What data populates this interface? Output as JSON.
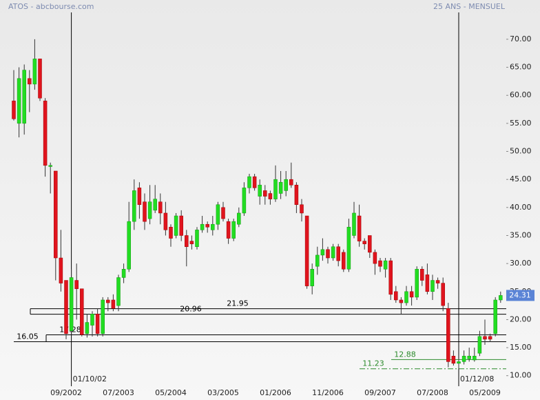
{
  "chart_data": {
    "type": "candlestick",
    "title": "ATOS - abcbourse.com",
    "subtitle": "25 ANS - MENSUEL",
    "x": [
      "11/2001",
      "12/2001",
      "01/2002",
      "02/2002",
      "03/2002",
      "04/2002",
      "05/2002",
      "06/2002",
      "07/2002",
      "08/2002",
      "09/2002",
      "10/2002",
      "11/2002",
      "12/2002",
      "01/2003",
      "02/2003",
      "03/2003",
      "04/2003",
      "05/2003",
      "06/2003",
      "07/2003",
      "08/2003",
      "09/2003",
      "10/2003",
      "11/2003",
      "12/2003",
      "01/2004",
      "02/2004",
      "03/2004",
      "04/2004",
      "05/2004",
      "06/2004",
      "07/2004",
      "08/2004",
      "09/2004",
      "10/2004",
      "11/2004",
      "12/2004",
      "01/2005",
      "02/2005",
      "03/2005",
      "04/2005",
      "05/2005",
      "06/2005",
      "07/2005",
      "08/2005",
      "09/2005",
      "10/2005",
      "11/2005",
      "12/2005",
      "01/2006",
      "02/2006",
      "03/2006",
      "04/2006",
      "05/2006",
      "06/2006",
      "07/2006",
      "08/2006",
      "09/2006",
      "10/2006",
      "11/2006",
      "12/2006",
      "01/2007",
      "02/2007",
      "03/2007",
      "04/2007",
      "05/2007",
      "06/2007",
      "07/2007",
      "08/2007",
      "09/2007",
      "10/2007",
      "11/2007",
      "12/2007",
      "01/2008",
      "02/2008",
      "03/2008",
      "04/2008",
      "05/2008",
      "06/2008",
      "07/2008",
      "08/2008",
      "09/2008",
      "10/2008",
      "11/2008",
      "12/2008",
      "01/2009",
      "02/2009",
      "03/2009",
      "04/2009",
      "05/2009",
      "06/2009",
      "07/2009",
      "08/2009"
    ],
    "xticks": [
      "09/2002",
      "07/2003",
      "05/2004",
      "03/2005",
      "01/2006",
      "11/2006",
      "09/2007",
      "07/2008",
      "05/2009"
    ],
    "open": [
      59,
      55,
      55,
      63,
      62,
      66.5,
      59,
      47.3,
      46.5,
      31,
      27,
      18,
      27,
      25.5,
      17.5,
      19,
      21,
      17.5,
      23.5,
      23.5,
      22.5,
      27.5,
      29,
      37.5,
      43.5,
      41,
      38,
      39.5,
      41,
      39,
      36.5,
      35,
      38.5,
      35,
      34,
      33,
      36,
      37,
      36,
      37,
      40,
      37.5,
      34.5,
      37,
      39,
      43.5,
      45.5,
      42,
      43,
      42.5,
      41.5,
      42.5,
      43,
      45,
      44,
      40.5,
      38.5,
      26,
      29.5,
      31.5,
      32.5,
      31,
      33,
      32,
      29,
      35,
      38.5,
      34,
      35,
      32,
      30.5,
      29,
      30.5,
      25,
      23.5,
      23,
      25,
      24,
      29,
      28,
      25,
      27,
      26.5,
      22,
      13.5,
      12.2,
      12.5,
      13,
      12.8,
      14,
      17,
      17,
      17.5,
      23.5
    ],
    "high": [
      64.5,
      65,
      65.5,
      64.5,
      70,
      66.5,
      59.5,
      48,
      46.5,
      36,
      27,
      29,
      30,
      25.5,
      21,
      21.5,
      22,
      24,
      24,
      24.5,
      28,
      30,
      41,
      45,
      44.5,
      42.5,
      44,
      44,
      42.5,
      41,
      37,
      39,
      39.5,
      36,
      35,
      36.5,
      38.5,
      37.5,
      38.5,
      41,
      41,
      38,
      38,
      40,
      44.5,
      46,
      46,
      45,
      44,
      43,
      47.5,
      46.5,
      46.5,
      48,
      44.5,
      41.5,
      38.5,
      30,
      33,
      34.5,
      33,
      33.5,
      33.5,
      32.5,
      38,
      41,
      40.5,
      34.5,
      35,
      32.5,
      31,
      31,
      31,
      26,
      24,
      26,
      26,
      29.5,
      29.5,
      30,
      28,
      27.5,
      27.5,
      23,
      14.5,
      13,
      14.5,
      15,
      15,
      18,
      20,
      17.5,
      24,
      25
    ],
    "low": [
      55.5,
      52.5,
      53,
      57,
      61,
      59,
      45.5,
      42.5,
      27,
      25,
      16.5,
      17.28,
      20,
      17,
      16.8,
      17,
      17,
      17,
      21.5,
      21.5,
      21.5,
      26.5,
      28.5,
      36,
      38,
      36,
      37,
      39,
      37,
      35,
      33,
      34.5,
      34,
      29.5,
      32.5,
      32.5,
      35.5,
      35.5,
      35,
      36,
      37.5,
      33.5,
      34,
      36.5,
      38.5,
      42.5,
      43,
      40.5,
      40.5,
      40.5,
      41,
      41.5,
      42,
      43.5,
      39,
      37.5,
      25.5,
      24.5,
      28,
      30.5,
      30,
      30.5,
      29.5,
      28.5,
      28.5,
      34.5,
      33,
      32.5,
      31,
      28,
      28.5,
      27.5,
      23.5,
      23,
      21,
      22.5,
      22.5,
      23.5,
      26,
      24.5,
      23.5,
      25.5,
      21.5,
      11.5,
      11.8,
      11.23,
      12,
      12.5,
      12.5,
      13.5,
      15.5,
      16,
      17,
      23
    ],
    "close": [
      55.8,
      63,
      64.5,
      62,
      66.5,
      59.5,
      47.5,
      47.5,
      31,
      26.5,
      17.5,
      27.5,
      25.5,
      17.3,
      19.5,
      21,
      17.5,
      23.5,
      23,
      22,
      27.5,
      29,
      37.5,
      43,
      40.5,
      37.5,
      41,
      41.5,
      39,
      36,
      34.5,
      38.5,
      35,
      33,
      33.5,
      36,
      37,
      36.5,
      37,
      40.5,
      38,
      34.5,
      37.5,
      39,
      43.5,
      45.5,
      43.5,
      44,
      42,
      41.5,
      45,
      44.5,
      45,
      44,
      40.5,
      39,
      26,
      29,
      31.5,
      32.5,
      31,
      33,
      30.5,
      29,
      36.5,
      39,
      34,
      33.5,
      32,
      30,
      29.5,
      30.5,
      24.5,
      23.5,
      23,
      25,
      24,
      29,
      27,
      25,
      27,
      26.5,
      22.5,
      12.5,
      12.2,
      12.5,
      13.5,
      13.5,
      13.5,
      17,
      16.5,
      16.5,
      23.5,
      24.31
    ],
    "up_color": "#22dd22",
    "down_color": "#e0141e",
    "last": 24.31,
    "ylim": [
      8,
      77
    ],
    "yticks": [
      {
        "value": 10,
        "label": "10.00"
      },
      {
        "value": 15,
        "label": "15.00"
      },
      {
        "value": 20,
        "label": "20.00"
      },
      {
        "value": 25,
        "label": "25.00"
      },
      {
        "value": 30,
        "label": "30.00"
      },
      {
        "value": 35,
        "label": "35.00"
      },
      {
        "value": 40,
        "label": "40.00"
      },
      {
        "value": 45,
        "label": "45.00"
      },
      {
        "value": 50,
        "label": "50.00"
      },
      {
        "value": 55,
        "label": "55.00"
      },
      {
        "value": 60,
        "label": "60.00"
      },
      {
        "value": 65,
        "label": "65.00"
      },
      {
        "value": 70,
        "label": "70.00"
      }
    ],
    "levels": [
      {
        "value": 21.95,
        "color": "#000000"
      },
      {
        "value": 20.96,
        "color": "#000000"
      },
      {
        "value": 17.28,
        "color": "#000000"
      },
      {
        "value": 16.05,
        "color": "#000000"
      },
      {
        "value": 12.88,
        "color": "#2a8a2a"
      },
      {
        "value": 11.23,
        "color": "#2a8a2a"
      }
    ],
    "events": [
      {
        "label": "01/10/02"
      },
      {
        "label": "01/12/08"
      }
    ]
  }
}
